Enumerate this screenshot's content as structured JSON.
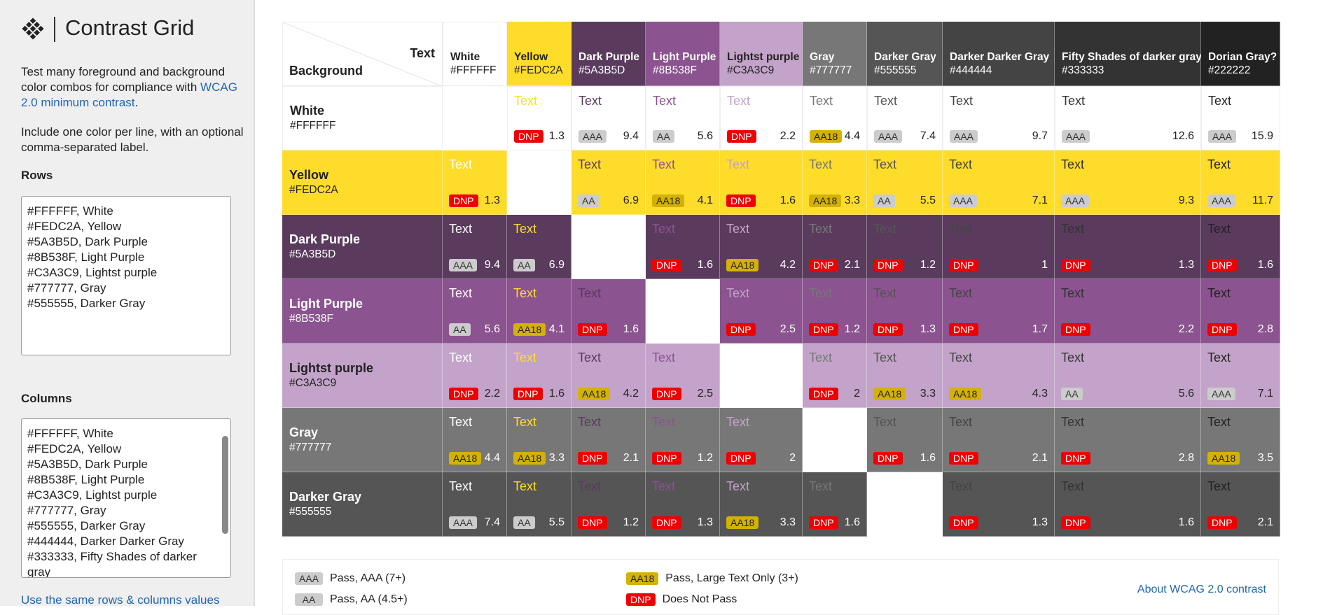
{
  "sidebar": {
    "title": "Contrast Grid",
    "intro": [
      "Test many foreground and background color combos for compliance with ",
      "WCAG 2.0 minimum contrast",
      "."
    ],
    "instructions": "Include one color per line, with an optional comma-separated label.",
    "rows_label": "Rows",
    "rows_text": [
      "#FFFFFF, White",
      "#FEDC2A, Yellow",
      "#5A3B5D, Dark Purple",
      "#8B538F, Light Purple",
      "#C3A3C9, Lightst purple",
      "#777777, Gray",
      "#555555, Darker Gray"
    ],
    "columns_label": "Columns",
    "columns_text": [
      "#FFFFFF, White",
      "#FEDC2A, Yellow",
      "#5A3B5D, Dark Purple",
      "#8B538F, Light Purple",
      "#C3A3C9, Lightst purple",
      "#777777, Gray",
      "#555555, Darker Gray",
      "#444444, Darker  Darker Gray",
      "#333333, Fifty Shades of darker gray"
    ],
    "same_link": "Use the same rows & columns values"
  },
  "grid": {
    "corner_text": "Text",
    "corner_background": "Background",
    "sample_text": "Text",
    "columns": [
      {
        "name": "White",
        "hex": "#FFFFFF"
      },
      {
        "name": "Yellow",
        "hex": "#FEDC2A"
      },
      {
        "name": "Dark Purple",
        "hex": "#5A3B5D"
      },
      {
        "name": "Light Purple",
        "hex": "#8B538F"
      },
      {
        "name": "Lightst purple",
        "hex": "#C3A3C9"
      },
      {
        "name": "Gray",
        "hex": "#777777"
      },
      {
        "name": "Darker Gray",
        "hex": "#555555"
      },
      {
        "name": "Darker Darker Gray",
        "hex": "#444444"
      },
      {
        "name": "Fifty Shades of darker gray",
        "hex": "#333333"
      },
      {
        "name": "Dorian Gray?",
        "hex": "#222222"
      }
    ],
    "rows": [
      {
        "name": "White",
        "hex": "#FFFFFF",
        "cells": [
          null,
          {
            "badge": "DNP",
            "ratio": 1.3
          },
          {
            "badge": "AAA",
            "ratio": 9.4
          },
          {
            "badge": "AA",
            "ratio": 5.6
          },
          {
            "badge": "DNP",
            "ratio": 2.2
          },
          {
            "badge": "AA18",
            "ratio": 4.4
          },
          {
            "badge": "AAA",
            "ratio": 7.4
          },
          {
            "badge": "AAA",
            "ratio": 9.7
          },
          {
            "badge": "AAA",
            "ratio": 12.6
          },
          {
            "badge": "AAA",
            "ratio": 15.9
          }
        ]
      },
      {
        "name": "Yellow",
        "hex": "#FEDC2A",
        "cells": [
          {
            "badge": "DNP",
            "ratio": 1.3
          },
          null,
          {
            "badge": "AA",
            "ratio": 6.9
          },
          {
            "badge": "AA18",
            "ratio": 4.1
          },
          {
            "badge": "DNP",
            "ratio": 1.6
          },
          {
            "badge": "AA18",
            "ratio": 3.3
          },
          {
            "badge": "AA",
            "ratio": 5.5
          },
          {
            "badge": "AAA",
            "ratio": 7.1
          },
          {
            "badge": "AAA",
            "ratio": 9.3
          },
          {
            "badge": "AAA",
            "ratio": 11.7
          }
        ]
      },
      {
        "name": "Dark Purple",
        "hex": "#5A3B5D",
        "cells": [
          {
            "badge": "AAA",
            "ratio": 9.4
          },
          {
            "badge": "AA",
            "ratio": 6.9
          },
          null,
          {
            "badge": "DNP",
            "ratio": 1.6
          },
          {
            "badge": "AA18",
            "ratio": 4.2
          },
          {
            "badge": "DNP",
            "ratio": 2.1
          },
          {
            "badge": "DNP",
            "ratio": 1.2
          },
          {
            "badge": "DNP",
            "ratio": 1
          },
          {
            "badge": "DNP",
            "ratio": 1.3
          },
          {
            "badge": "DNP",
            "ratio": 1.6
          }
        ]
      },
      {
        "name": "Light Purple",
        "hex": "#8B538F",
        "cells": [
          {
            "badge": "AA",
            "ratio": 5.6
          },
          {
            "badge": "AA18",
            "ratio": 4.1
          },
          {
            "badge": "DNP",
            "ratio": 1.6
          },
          null,
          {
            "badge": "DNP",
            "ratio": 2.5
          },
          {
            "badge": "DNP",
            "ratio": 1.2
          },
          {
            "badge": "DNP",
            "ratio": 1.3
          },
          {
            "badge": "DNP",
            "ratio": 1.7
          },
          {
            "badge": "DNP",
            "ratio": 2.2
          },
          {
            "badge": "DNP",
            "ratio": 2.8
          }
        ]
      },
      {
        "name": "Lightst purple",
        "hex": "#C3A3C9",
        "cells": [
          {
            "badge": "DNP",
            "ratio": 2.2
          },
          {
            "badge": "DNP",
            "ratio": 1.6
          },
          {
            "badge": "AA18",
            "ratio": 4.2
          },
          {
            "badge": "DNP",
            "ratio": 2.5
          },
          null,
          {
            "badge": "DNP",
            "ratio": 2
          },
          {
            "badge": "AA18",
            "ratio": 3.3
          },
          {
            "badge": "AA18",
            "ratio": 4.3
          },
          {
            "badge": "AA",
            "ratio": 5.6
          },
          {
            "badge": "AAA",
            "ratio": 7.1
          }
        ]
      },
      {
        "name": "Gray",
        "hex": "#777777",
        "cells": [
          {
            "badge": "AA18",
            "ratio": 4.4
          },
          {
            "badge": "AA18",
            "ratio": 3.3
          },
          {
            "badge": "DNP",
            "ratio": 2.1
          },
          {
            "badge": "DNP",
            "ratio": 1.2
          },
          {
            "badge": "DNP",
            "ratio": 2
          },
          null,
          {
            "badge": "DNP",
            "ratio": 1.6
          },
          {
            "badge": "DNP",
            "ratio": 2.1
          },
          {
            "badge": "DNP",
            "ratio": 2.8
          },
          {
            "badge": "AA18",
            "ratio": 3.5
          }
        ]
      },
      {
        "name": "Darker Gray",
        "hex": "#555555",
        "cells": [
          {
            "badge": "AAA",
            "ratio": 7.4
          },
          {
            "badge": "AA",
            "ratio": 5.5
          },
          {
            "badge": "DNP",
            "ratio": 1.2
          },
          {
            "badge": "DNP",
            "ratio": 1.3
          },
          {
            "badge": "AA18",
            "ratio": 3.3
          },
          {
            "badge": "DNP",
            "ratio": 1.6
          },
          null,
          {
            "badge": "DNP",
            "ratio": 1.3
          },
          {
            "badge": "DNP",
            "ratio": 1.6
          },
          {
            "badge": "DNP",
            "ratio": 2.1
          }
        ]
      }
    ]
  },
  "legend": {
    "items": [
      {
        "badge": "AAA",
        "text": "Pass, AAA (7+)"
      },
      {
        "badge": "AA",
        "text": "Pass, AA (4.5+)"
      },
      {
        "badge": "AA18",
        "text": "Pass, Large Text Only (3+)"
      },
      {
        "badge": "DNP",
        "text": "Does Not Pass"
      }
    ],
    "link": "About WCAG 2.0 contrast"
  }
}
